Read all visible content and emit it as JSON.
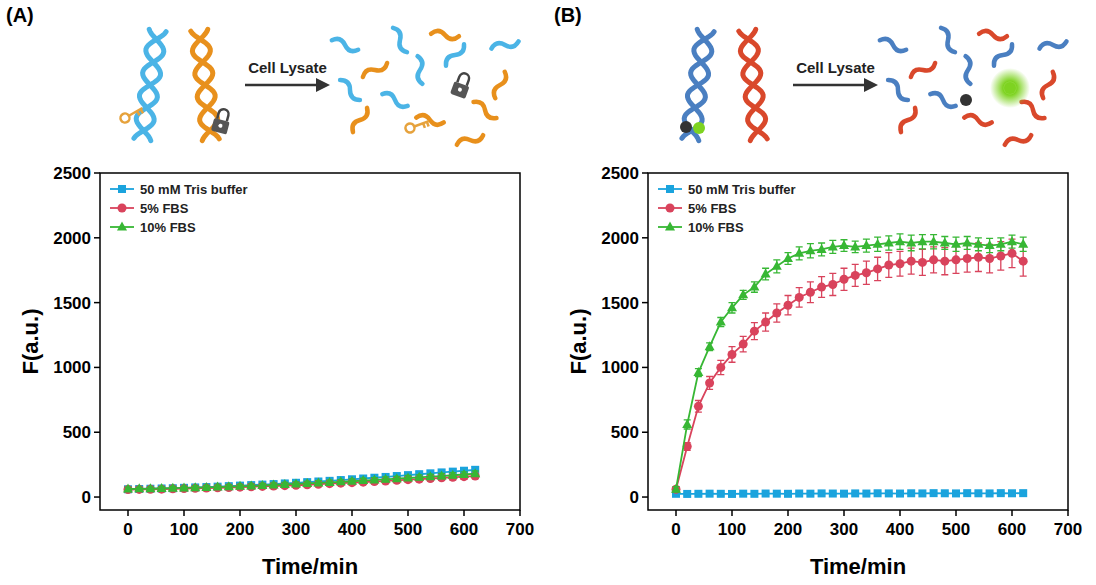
{
  "chart_data": [
    {
      "type": "line",
      "panel_label": "(A)",
      "annotations": [
        "Cell Lysate"
      ],
      "x_label": "Time/min",
      "y_label": "F(a.u.)",
      "xlim": [
        -50,
        700
      ],
      "xticks": [
        0,
        100,
        200,
        300,
        400,
        500,
        600,
        700
      ],
      "ylim": [
        -100,
        2500
      ],
      "yticks": [
        0,
        500,
        1000,
        1500,
        2000,
        2500
      ],
      "grid": false,
      "legend": "upper left",
      "x": [
        0,
        20,
        40,
        60,
        80,
        100,
        120,
        140,
        160,
        180,
        200,
        220,
        240,
        260,
        280,
        300,
        320,
        340,
        360,
        380,
        400,
        420,
        440,
        460,
        480,
        500,
        520,
        540,
        560,
        580,
        600,
        620
      ],
      "series": [
        {
          "name": "50 mM Tris buffer",
          "color": "#1aa3dd",
          "marker": "square",
          "values": [
            60,
            62,
            64,
            66,
            68,
            71,
            74,
            77,
            80,
            84,
            88,
            92,
            96,
            100,
            105,
            110,
            115,
            120,
            125,
            131,
            137,
            143,
            149,
            155,
            162,
            169,
            176,
            183,
            190,
            196,
            203,
            210
          ],
          "errors": [
            15,
            15,
            15,
            15,
            15,
            15,
            15,
            15,
            16,
            16,
            16,
            16,
            17,
            17,
            17,
            17,
            18,
            18,
            18,
            18,
            19,
            19,
            19,
            20,
            20,
            20,
            21,
            21,
            22,
            22,
            23,
            24
          ]
        },
        {
          "name": "5% FBS",
          "color": "#d9435c",
          "marker": "circle",
          "values": [
            58,
            59,
            60,
            61,
            63,
            65,
            67,
            69,
            71,
            73,
            76,
            79,
            82,
            85,
            88,
            91,
            95,
            99,
            103,
            107,
            111,
            115,
            119,
            124,
            129,
            134,
            138,
            143,
            148,
            152,
            157,
            162
          ],
          "errors": [
            14,
            14,
            14,
            14,
            14,
            14,
            14,
            15,
            15,
            15,
            15,
            15,
            15,
            16,
            16,
            16,
            16,
            16,
            17,
            17,
            17,
            17,
            18,
            18,
            18,
            18,
            19,
            19,
            19,
            20,
            20,
            20
          ]
        },
        {
          "name": "10% FBS",
          "color": "#37b734",
          "marker": "triangle",
          "values": [
            62,
            63,
            64,
            66,
            68,
            70,
            72,
            74,
            77,
            80,
            83,
            86,
            89,
            93,
            97,
            101,
            105,
            109,
            113,
            117,
            122,
            127,
            132,
            137,
            142,
            147,
            152,
            157,
            162,
            168,
            174,
            180
          ],
          "errors": [
            14,
            14,
            14,
            14,
            14,
            14,
            15,
            15,
            15,
            15,
            15,
            15,
            16,
            16,
            16,
            16,
            16,
            17,
            17,
            17,
            17,
            18,
            18,
            18,
            18,
            19,
            19,
            19,
            20,
            20,
            20,
            21
          ]
        }
      ]
    },
    {
      "type": "line",
      "panel_label": "(B)",
      "annotations": [
        "Cell Lysate"
      ],
      "x_label": "Time/min",
      "y_label": "F(a.u.)",
      "xlim": [
        -50,
        700
      ],
      "xticks": [
        0,
        100,
        200,
        300,
        400,
        500,
        600,
        700
      ],
      "ylim": [
        -100,
        2500
      ],
      "yticks": [
        0,
        500,
        1000,
        1500,
        2000,
        2500
      ],
      "grid": false,
      "legend": "upper left",
      "x": [
        0,
        20,
        40,
        60,
        80,
        100,
        120,
        140,
        160,
        180,
        200,
        220,
        240,
        260,
        280,
        300,
        320,
        340,
        360,
        380,
        400,
        420,
        440,
        460,
        480,
        500,
        520,
        540,
        560,
        580,
        600,
        620
      ],
      "series": [
        {
          "name": "50 mM Tris buffer",
          "color": "#1aa3dd",
          "marker": "square",
          "values": [
            25,
            24,
            25,
            26,
            25,
            24,
            26,
            25,
            27,
            26,
            25,
            27,
            26,
            28,
            27,
            26,
            28,
            27,
            29,
            28,
            27,
            29,
            28,
            30,
            29,
            28,
            30,
            29,
            28,
            30,
            29,
            30
          ],
          "errors": [
            8,
            8,
            8,
            8,
            8,
            8,
            8,
            8,
            8,
            8,
            8,
            8,
            8,
            8,
            8,
            8,
            8,
            8,
            8,
            8,
            8,
            8,
            8,
            8,
            8,
            8,
            8,
            8,
            8,
            8,
            8,
            8
          ]
        },
        {
          "name": "5% FBS",
          "color": "#d9435c",
          "marker": "circle",
          "values": [
            60,
            390,
            700,
            880,
            1000,
            1100,
            1180,
            1280,
            1350,
            1420,
            1480,
            1540,
            1580,
            1620,
            1640,
            1680,
            1710,
            1730,
            1760,
            1790,
            1800,
            1820,
            1810,
            1830,
            1820,
            1830,
            1840,
            1850,
            1840,
            1860,
            1880,
            1820
          ],
          "errors": [
            20,
            30,
            45,
            50,
            55,
            60,
            60,
            65,
            70,
            70,
            75,
            75,
            80,
            80,
            85,
            85,
            85,
            90,
            90,
            95,
            95,
            100,
            100,
            100,
            105,
            105,
            105,
            110,
            110,
            110,
            110,
            115
          ]
        },
        {
          "name": "10% FBS",
          "color": "#37b734",
          "marker": "triangle",
          "values": [
            60,
            560,
            960,
            1160,
            1350,
            1460,
            1560,
            1620,
            1720,
            1780,
            1840,
            1880,
            1900,
            1910,
            1930,
            1940,
            1930,
            1940,
            1950,
            1960,
            1970,
            1960,
            1970,
            1970,
            1960,
            1950,
            1960,
            1950,
            1940,
            1950,
            1970,
            1950
          ],
          "errors": [
            20,
            35,
            30,
            30,
            35,
            40,
            35,
            40,
            45,
            50,
            45,
            50,
            55,
            50,
            50,
            45,
            45,
            50,
            55,
            55,
            60,
            60,
            55,
            55,
            50,
            55,
            50,
            50,
            55,
            50,
            50,
            55
          ]
        }
      ]
    }
  ]
}
